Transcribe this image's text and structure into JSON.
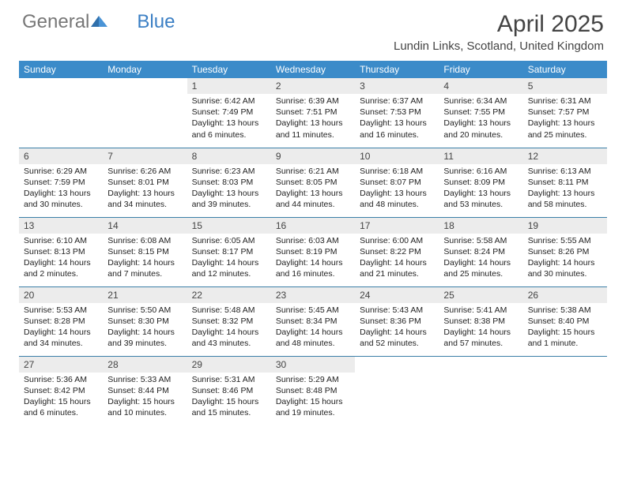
{
  "logo": {
    "text_gray": "General",
    "text_blue": "Blue"
  },
  "title": "April 2025",
  "location": "Lundin Links, Scotland, United Kingdom",
  "colors": {
    "header_bg": "#3b8bc9",
    "header_text": "#ffffff",
    "daynum_bg": "#ececec",
    "row_border": "#3b7fa8",
    "logo_blue": "#3b7fc4",
    "logo_gray": "#777"
  },
  "typography": {
    "title_fontsize": 30,
    "location_fontsize": 15,
    "header_fontsize": 12,
    "daynum_fontsize": 12,
    "body_fontsize": 10.5
  },
  "day_labels": [
    "Sunday",
    "Monday",
    "Tuesday",
    "Wednesday",
    "Thursday",
    "Friday",
    "Saturday"
  ],
  "weeks": [
    [
      {
        "n": "",
        "sr": "",
        "ss": "",
        "dl": ""
      },
      {
        "n": "",
        "sr": "",
        "ss": "",
        "dl": ""
      },
      {
        "n": "1",
        "sr": "6:42 AM",
        "ss": "7:49 PM",
        "dl": "13 hours and 6 minutes."
      },
      {
        "n": "2",
        "sr": "6:39 AM",
        "ss": "7:51 PM",
        "dl": "13 hours and 11 minutes."
      },
      {
        "n": "3",
        "sr": "6:37 AM",
        "ss": "7:53 PM",
        "dl": "13 hours and 16 minutes."
      },
      {
        "n": "4",
        "sr": "6:34 AM",
        "ss": "7:55 PM",
        "dl": "13 hours and 20 minutes."
      },
      {
        "n": "5",
        "sr": "6:31 AM",
        "ss": "7:57 PM",
        "dl": "13 hours and 25 minutes."
      }
    ],
    [
      {
        "n": "6",
        "sr": "6:29 AM",
        "ss": "7:59 PM",
        "dl": "13 hours and 30 minutes."
      },
      {
        "n": "7",
        "sr": "6:26 AM",
        "ss": "8:01 PM",
        "dl": "13 hours and 34 minutes."
      },
      {
        "n": "8",
        "sr": "6:23 AM",
        "ss": "8:03 PM",
        "dl": "13 hours and 39 minutes."
      },
      {
        "n": "9",
        "sr": "6:21 AM",
        "ss": "8:05 PM",
        "dl": "13 hours and 44 minutes."
      },
      {
        "n": "10",
        "sr": "6:18 AM",
        "ss": "8:07 PM",
        "dl": "13 hours and 48 minutes."
      },
      {
        "n": "11",
        "sr": "6:16 AM",
        "ss": "8:09 PM",
        "dl": "13 hours and 53 minutes."
      },
      {
        "n": "12",
        "sr": "6:13 AM",
        "ss": "8:11 PM",
        "dl": "13 hours and 58 minutes."
      }
    ],
    [
      {
        "n": "13",
        "sr": "6:10 AM",
        "ss": "8:13 PM",
        "dl": "14 hours and 2 minutes."
      },
      {
        "n": "14",
        "sr": "6:08 AM",
        "ss": "8:15 PM",
        "dl": "14 hours and 7 minutes."
      },
      {
        "n": "15",
        "sr": "6:05 AM",
        "ss": "8:17 PM",
        "dl": "14 hours and 12 minutes."
      },
      {
        "n": "16",
        "sr": "6:03 AM",
        "ss": "8:19 PM",
        "dl": "14 hours and 16 minutes."
      },
      {
        "n": "17",
        "sr": "6:00 AM",
        "ss": "8:22 PM",
        "dl": "14 hours and 21 minutes."
      },
      {
        "n": "18",
        "sr": "5:58 AM",
        "ss": "8:24 PM",
        "dl": "14 hours and 25 minutes."
      },
      {
        "n": "19",
        "sr": "5:55 AM",
        "ss": "8:26 PM",
        "dl": "14 hours and 30 minutes."
      }
    ],
    [
      {
        "n": "20",
        "sr": "5:53 AM",
        "ss": "8:28 PM",
        "dl": "14 hours and 34 minutes."
      },
      {
        "n": "21",
        "sr": "5:50 AM",
        "ss": "8:30 PM",
        "dl": "14 hours and 39 minutes."
      },
      {
        "n": "22",
        "sr": "5:48 AM",
        "ss": "8:32 PM",
        "dl": "14 hours and 43 minutes."
      },
      {
        "n": "23",
        "sr": "5:45 AM",
        "ss": "8:34 PM",
        "dl": "14 hours and 48 minutes."
      },
      {
        "n": "24",
        "sr": "5:43 AM",
        "ss": "8:36 PM",
        "dl": "14 hours and 52 minutes."
      },
      {
        "n": "25",
        "sr": "5:41 AM",
        "ss": "8:38 PM",
        "dl": "14 hours and 57 minutes."
      },
      {
        "n": "26",
        "sr": "5:38 AM",
        "ss": "8:40 PM",
        "dl": "15 hours and 1 minute."
      }
    ],
    [
      {
        "n": "27",
        "sr": "5:36 AM",
        "ss": "8:42 PM",
        "dl": "15 hours and 6 minutes."
      },
      {
        "n": "28",
        "sr": "5:33 AM",
        "ss": "8:44 PM",
        "dl": "15 hours and 10 minutes."
      },
      {
        "n": "29",
        "sr": "5:31 AM",
        "ss": "8:46 PM",
        "dl": "15 hours and 15 minutes."
      },
      {
        "n": "30",
        "sr": "5:29 AM",
        "ss": "8:48 PM",
        "dl": "15 hours and 19 minutes."
      },
      {
        "n": "",
        "sr": "",
        "ss": "",
        "dl": ""
      },
      {
        "n": "",
        "sr": "",
        "ss": "",
        "dl": ""
      },
      {
        "n": "",
        "sr": "",
        "ss": "",
        "dl": ""
      }
    ]
  ],
  "labels": {
    "sunrise": "Sunrise:",
    "sunset": "Sunset:",
    "daylight": "Daylight:"
  }
}
